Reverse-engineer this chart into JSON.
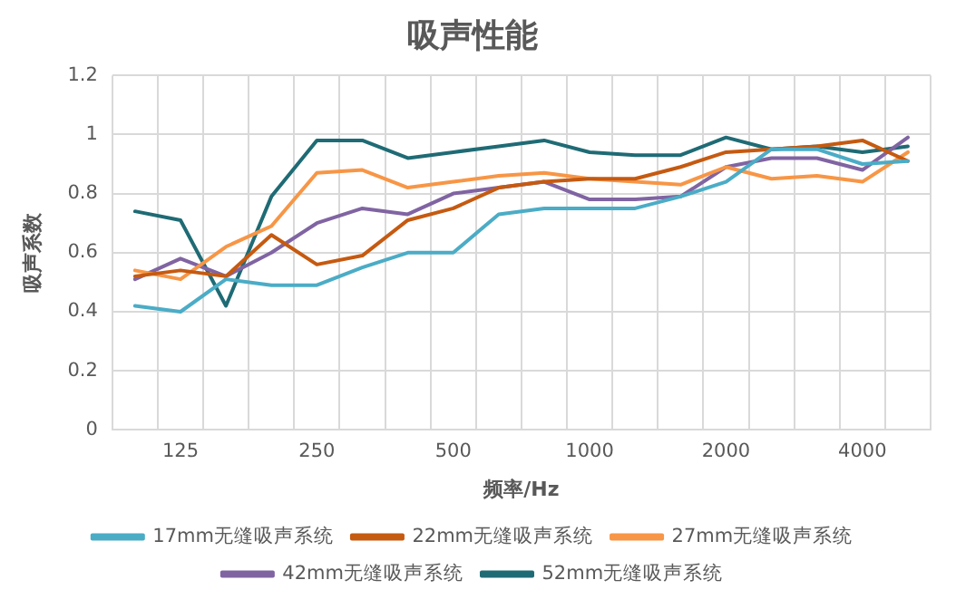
{
  "chart_data": {
    "type": "line",
    "title": "吸声性能",
    "xlabel": "频率/Hz",
    "ylabel": "吸声系数",
    "categories": [
      null,
      "125",
      null,
      null,
      "250",
      null,
      null,
      "500",
      null,
      null,
      "1000",
      null,
      null,
      "2000",
      null,
      null,
      "4000",
      null
    ],
    "ylim": [
      0,
      1.2
    ],
    "yticks": [
      0,
      0.2,
      0.4,
      0.6,
      0.8,
      1,
      1.2
    ],
    "grid": true,
    "legend": "bottom",
    "marker": "none",
    "line_style": "solid",
    "series": [
      {
        "name": "17mm无缝吸声系统",
        "color": "#4bacc6",
        "values": [
          0.42,
          0.4,
          0.51,
          0.49,
          0.49,
          0.55,
          0.6,
          0.6,
          0.73,
          0.75,
          0.75,
          0.75,
          0.79,
          0.84,
          0.95,
          0.95,
          0.9,
          0.91
        ]
      },
      {
        "name": "22mm无缝吸声系统",
        "color": "#c55a11",
        "values": [
          0.52,
          0.54,
          0.52,
          0.66,
          0.56,
          0.59,
          0.71,
          0.75,
          0.82,
          0.84,
          0.85,
          0.85,
          0.89,
          0.94,
          0.95,
          0.96,
          0.98,
          0.91
        ]
      },
      {
        "name": "27mm无缝吸声系统",
        "color": "#f79646",
        "values": [
          0.54,
          0.51,
          0.62,
          0.69,
          0.87,
          0.88,
          0.82,
          0.84,
          0.86,
          0.87,
          0.85,
          0.84,
          0.83,
          0.89,
          0.85,
          0.86,
          0.84,
          0.94
        ]
      },
      {
        "name": "42mm无缝吸声系统",
        "color": "#8064a2",
        "values": [
          0.51,
          0.58,
          0.52,
          0.6,
          0.7,
          0.75,
          0.73,
          0.8,
          0.82,
          0.84,
          0.78,
          0.78,
          0.79,
          0.89,
          0.92,
          0.92,
          0.88,
          0.99
        ]
      },
      {
        "name": "52mm无缝吸声系统",
        "color": "#1f6b75",
        "values": [
          0.74,
          0.71,
          0.42,
          0.79,
          0.98,
          0.98,
          0.92,
          0.94,
          0.96,
          0.98,
          0.94,
          0.93,
          0.93,
          0.99,
          0.95,
          0.96,
          0.94,
          0.96
        ]
      }
    ]
  }
}
